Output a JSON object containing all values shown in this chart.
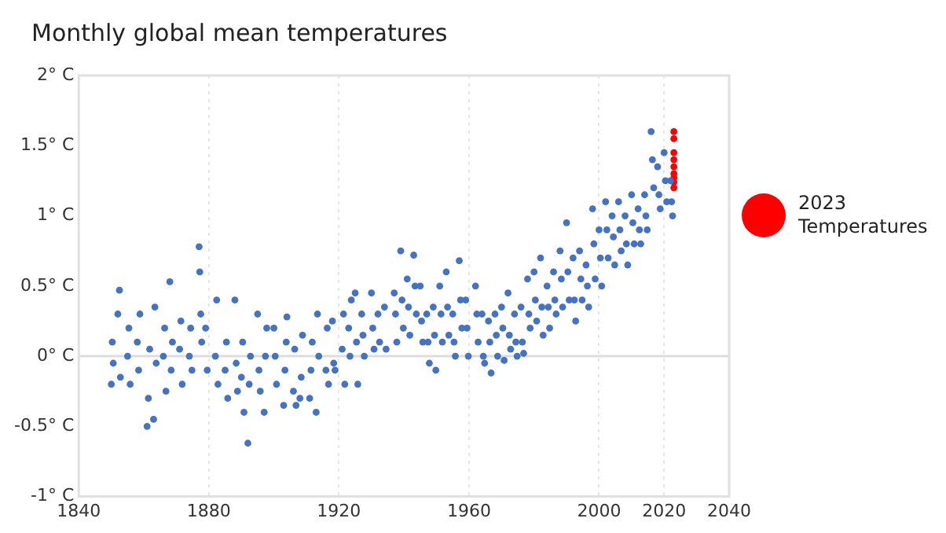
{
  "chart_data": {
    "type": "scatter",
    "title": "Monthly global mean temperatures",
    "xlim": [
      1840,
      2040
    ],
    "xticks": [
      1840,
      1880,
      1920,
      1960,
      2000,
      2020,
      2040
    ],
    "ylim": [
      -1,
      2
    ],
    "yticks": [
      {
        "value": -1,
        "label": "-1° C"
      },
      {
        "value": -0.5,
        "label": "-0.5° C"
      },
      {
        "value": 0,
        "label": "0° C"
      },
      {
        "value": 0.5,
        "label": "0.5° C"
      },
      {
        "value": 1,
        "label": "1° C"
      },
      {
        "value": 1.5,
        "label": "1.5° C"
      },
      {
        "value": 2,
        "label": "2° C"
      }
    ],
    "grid": "x",
    "legend": "right",
    "marker": "circle",
    "ref_lines": [
      {
        "axis": "y",
        "value": 0,
        "color": "#dddddd"
      }
    ],
    "series": [
      {
        "color": "#4472c4",
        "x": [
          1850,
          1850.3,
          1850.6,
          1852,
          1852.5,
          1852.8,
          1855,
          1855.4,
          1855.8,
          1858,
          1858.4,
          1858.8,
          1861,
          1861.4,
          1861.8,
          1863,
          1863.4,
          1863.8,
          1866,
          1866.4,
          1866.8,
          1868,
          1868.4,
          1868.8,
          1871,
          1871.4,
          1871.8,
          1874,
          1874.4,
          1874.8,
          1877,
          1877.2,
          1877.5,
          1877.8,
          1879,
          1879.5,
          1882,
          1882.4,
          1882.8,
          1885,
          1885.4,
          1885.8,
          1888,
          1888.4,
          1888.8,
          1890,
          1890.4,
          1890.8,
          1892,
          1892.4,
          1892.8,
          1895,
          1895.4,
          1895.8,
          1897,
          1897.4,
          1897.8,
          1900,
          1900.4,
          1900.8,
          1903,
          1903.4,
          1903.8,
          1904,
          1906,
          1906.4,
          1906.8,
          1908,
          1908.4,
          1908.8,
          1911,
          1911.4,
          1911.8,
          1913,
          1913.4,
          1913.8,
          1916,
          1916.4,
          1916.8,
          1918,
          1918.4,
          1918.8,
          1921,
          1921.4,
          1921.8,
          1923,
          1923.4,
          1923.8,
          1925,
          1925.4,
          1925.8,
          1927,
          1927.4,
          1927.8,
          1930,
          1930.4,
          1930.8,
          1932,
          1932.5,
          1934,
          1934.5,
          1937,
          1937.4,
          1937.8,
          1939,
          1939.4,
          1939.8,
          1941,
          1941.4,
          1941.8,
          1943,
          1943.4,
          1943.8,
          1945,
          1945.4,
          1945.8,
          1947,
          1947.4,
          1947.8,
          1949,
          1949.4,
          1949.8,
          1951,
          1951.4,
          1951.8,
          1953,
          1953.4,
          1953.8,
          1955,
          1955.4,
          1955.8,
          1957,
          1957.4,
          1957.8,
          1959,
          1959.4,
          1959.8,
          1962,
          1962.4,
          1962.8,
          1964,
          1964.4,
          1964.8,
          1966,
          1966.4,
          1966.8,
          1968,
          1968.4,
          1968.8,
          1970,
          1970.4,
          1970.8,
          1972,
          1972.4,
          1972.8,
          1974,
          1974.4,
          1974.8,
          1976,
          1976.4,
          1976.8,
          1978,
          1978.4,
          1978.8,
          1980,
          1980.4,
          1980.8,
          1982,
          1982.4,
          1982.8,
          1984,
          1984.4,
          1984.8,
          1986,
          1986.4,
          1986.8,
          1988,
          1988.4,
          1988.8,
          1990,
          1990.4,
          1990.8,
          1992,
          1992.4,
          1992.8,
          1994,
          1994.4,
          1994.8,
          1996,
          1996.4,
          1996.8,
          1998,
          1998.4,
          1998.8,
          2000,
          2000.4,
          2000.8,
          2002,
          2002.4,
          2002.8,
          2004,
          2004.4,
          2004.8,
          2006,
          2006.4,
          2006.8,
          2008,
          2008.4,
          2008.8,
          2010,
          2010.4,
          2010.8,
          2012,
          2012.4,
          2012.8,
          2014,
          2014.4,
          2014.8,
          2016,
          2016.4,
          2016.8,
          2018,
          2018.4,
          2018.8,
          2020,
          2020.4,
          2020.8,
          2022,
          2022.3,
          2022.6
        ],
        "values": [
          -0.2,
          0.1,
          -0.05,
          0.3,
          0.47,
          -0.15,
          0.0,
          0.2,
          -0.2,
          0.1,
          -0.1,
          0.3,
          -0.5,
          -0.3,
          0.05,
          -0.45,
          0.35,
          -0.05,
          0.0,
          0.2,
          -0.25,
          0.53,
          -0.1,
          0.1,
          0.05,
          0.25,
          -0.2,
          0.0,
          0.2,
          -0.1,
          0.78,
          0.6,
          0.3,
          0.1,
          0.2,
          -0.1,
          0.0,
          0.4,
          -0.2,
          -0.1,
          0.1,
          -0.3,
          0.4,
          -0.05,
          -0.25,
          -0.15,
          0.1,
          -0.4,
          -0.62,
          -0.2,
          0.0,
          0.3,
          -0.1,
          -0.25,
          -0.4,
          0.0,
          0.2,
          0.2,
          0.0,
          -0.2,
          -0.35,
          -0.1,
          0.1,
          0.28,
          -0.25,
          0.05,
          -0.35,
          -0.3,
          -0.15,
          0.15,
          -0.3,
          -0.1,
          0.1,
          -0.4,
          0.3,
          0.0,
          -0.1,
          0.2,
          -0.2,
          0.25,
          -0.05,
          -0.1,
          0.05,
          0.3,
          -0.2,
          0.2,
          0.0,
          0.4,
          0.45,
          0.1,
          -0.2,
          0.3,
          0.15,
          0.0,
          0.45,
          0.2,
          0.05,
          0.3,
          0.1,
          0.35,
          0.05,
          0.45,
          0.3,
          0.1,
          0.75,
          0.4,
          0.2,
          0.55,
          0.35,
          0.15,
          0.72,
          0.5,
          0.3,
          0.5,
          0.25,
          0.1,
          0.3,
          0.1,
          -0.05,
          0.35,
          0.15,
          -0.1,
          0.5,
          0.3,
          0.1,
          0.6,
          0.35,
          0.15,
          0.3,
          0.1,
          0.0,
          0.68,
          0.4,
          0.2,
          0.4,
          0.2,
          0.0,
          0.5,
          0.3,
          0.1,
          0.3,
          0.0,
          -0.05,
          0.25,
          0.1,
          -0.12,
          0.3,
          0.15,
          0.0,
          0.35,
          0.2,
          -0.03,
          0.45,
          0.15,
          0.05,
          0.3,
          0.1,
          0.0,
          0.35,
          0.1,
          0.02,
          0.55,
          0.3,
          0.2,
          0.6,
          0.4,
          0.25,
          0.7,
          0.35,
          0.15,
          0.5,
          0.35,
          0.2,
          0.6,
          0.4,
          0.3,
          0.75,
          0.55,
          0.35,
          0.95,
          0.6,
          0.4,
          0.7,
          0.4,
          0.25,
          0.75,
          0.55,
          0.4,
          0.65,
          0.5,
          0.35,
          1.05,
          0.8,
          0.55,
          0.9,
          0.7,
          0.5,
          1.1,
          0.9,
          0.7,
          1.0,
          0.85,
          0.65,
          1.1,
          0.9,
          0.75,
          1.0,
          0.8,
          0.65,
          1.15,
          0.95,
          0.8,
          1.05,
          0.9,
          0.8,
          1.15,
          1.0,
          0.9,
          1.6,
          1.4,
          1.2,
          1.35,
          1.15,
          1.05,
          1.45,
          1.25,
          1.1,
          1.25,
          1.1,
          1.0
        ]
      },
      {
        "name": "2023 Temperatures",
        "color": "#ff0000",
        "x": [
          2023,
          2023,
          2023,
          2023,
          2023,
          2023,
          2023,
          2023,
          2023
        ],
        "values": [
          1.6,
          1.55,
          1.45,
          1.4,
          1.35,
          1.3,
          1.27,
          1.24,
          1.2
        ]
      }
    ]
  }
}
